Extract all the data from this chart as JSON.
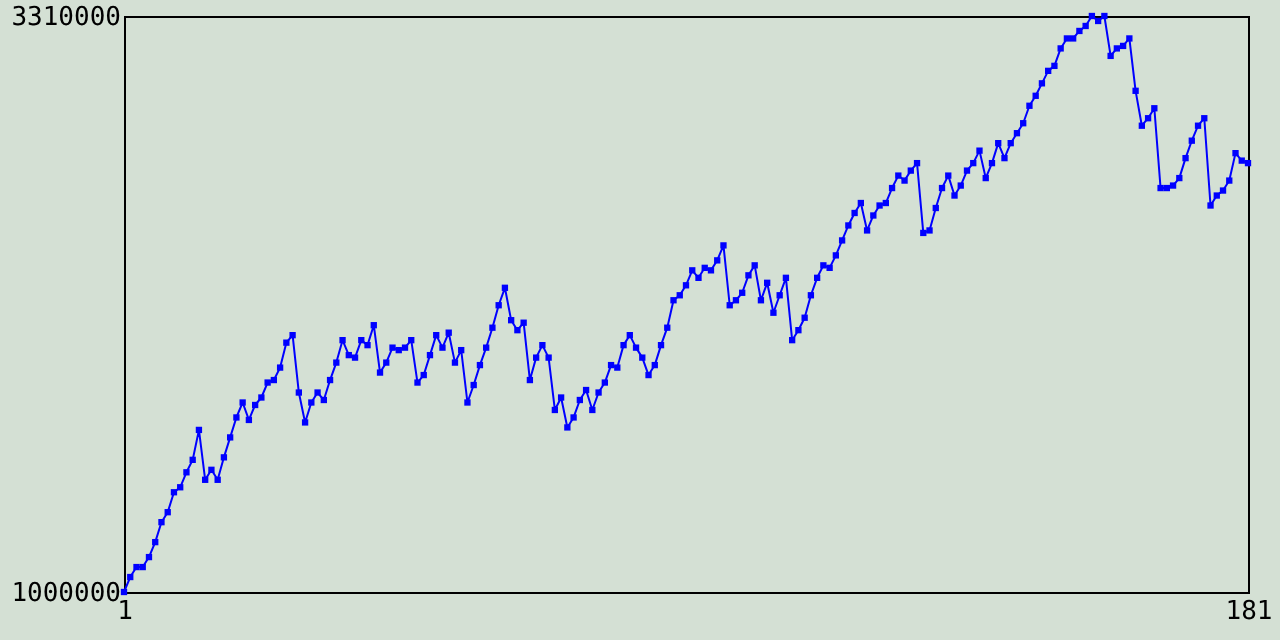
{
  "chart_data": {
    "type": "line",
    "x": [
      1,
      2,
      3,
      4,
      5,
      6,
      7,
      8,
      9,
      10,
      11,
      12,
      13,
      14,
      15,
      16,
      17,
      18,
      19,
      20,
      21,
      22,
      23,
      24,
      25,
      26,
      27,
      28,
      29,
      30,
      31,
      32,
      33,
      34,
      35,
      36,
      37,
      38,
      39,
      40,
      41,
      42,
      43,
      44,
      45,
      46,
      47,
      48,
      49,
      50,
      51,
      52,
      53,
      54,
      55,
      56,
      57,
      58,
      59,
      60,
      61,
      62,
      63,
      64,
      65,
      66,
      67,
      68,
      69,
      70,
      71,
      72,
      73,
      74,
      75,
      76,
      77,
      78,
      79,
      80,
      81,
      82,
      83,
      84,
      85,
      86,
      87,
      88,
      89,
      90,
      91,
      92,
      93,
      94,
      95,
      96,
      97,
      98,
      99,
      100,
      101,
      102,
      103,
      104,
      105,
      106,
      107,
      108,
      109,
      110,
      111,
      112,
      113,
      114,
      115,
      116,
      117,
      118,
      119,
      120,
      121,
      122,
      123,
      124,
      125,
      126,
      127,
      128,
      129,
      130,
      131,
      132,
      133,
      134,
      135,
      136,
      137,
      138,
      139,
      140,
      141,
      142,
      143,
      144,
      145,
      146,
      147,
      148,
      149,
      150,
      151,
      152,
      153,
      154,
      155,
      156,
      157,
      158,
      159,
      160,
      161,
      162,
      163,
      164,
      165,
      166,
      167,
      168,
      169,
      170,
      171,
      172,
      173,
      174,
      175,
      176,
      177,
      178,
      179,
      180,
      181
    ],
    "series": [
      {
        "color": "#0000ff",
        "values": [
          1000000,
          1060000,
          1100000,
          1100000,
          1140000,
          1200000,
          1280000,
          1320000,
          1400000,
          1420000,
          1480000,
          1530000,
          1650000,
          1450000,
          1490000,
          1450000,
          1540000,
          1620000,
          1700000,
          1760000,
          1690000,
          1750000,
          1780000,
          1840000,
          1850000,
          1900000,
          2000000,
          2030000,
          1800000,
          1680000,
          1760000,
          1800000,
          1770000,
          1850000,
          1920000,
          2010000,
          1950000,
          1940000,
          2010000,
          1990000,
          2070000,
          1880000,
          1920000,
          1980000,
          1970000,
          1980000,
          2010000,
          1840000,
          1870000,
          1950000,
          2030000,
          1980000,
          2040000,
          1920000,
          1970000,
          1760000,
          1830000,
          1910000,
          1980000,
          2060000,
          2150000,
          2220000,
          2090000,
          2050000,
          2080000,
          1850000,
          1940000,
          1990000,
          1940000,
          1730000,
          1780000,
          1660000,
          1700000,
          1770000,
          1810000,
          1730000,
          1800000,
          1840000,
          1910000,
          1900000,
          1990000,
          2030000,
          1980000,
          1940000,
          1870000,
          1910000,
          1990000,
          2060000,
          2170000,
          2190000,
          2230000,
          2290000,
          2260000,
          2300000,
          2290000,
          2330000,
          2390000,
          2150000,
          2170000,
          2200000,
          2270000,
          2310000,
          2170000,
          2240000,
          2120000,
          2190000,
          2260000,
          2010000,
          2050000,
          2100000,
          2190000,
          2260000,
          2310000,
          2300000,
          2350000,
          2410000,
          2470000,
          2520000,
          2560000,
          2450000,
          2510000,
          2550000,
          2560000,
          2620000,
          2670000,
          2650000,
          2690000,
          2720000,
          2440000,
          2450000,
          2540000,
          2620000,
          2670000,
          2590000,
          2630000,
          2690000,
          2720000,
          2770000,
          2660000,
          2720000,
          2800000,
          2740000,
          2800000,
          2840000,
          2880000,
          2950000,
          2990000,
          3040000,
          3090000,
          3110000,
          3180000,
          3220000,
          3220000,
          3250000,
          3270000,
          3310000,
          3290000,
          3310000,
          3150000,
          3180000,
          3190000,
          3220000,
          3010000,
          2870000,
          2900000,
          2940000,
          2620000,
          2620000,
          2630000,
          2660000,
          2740000,
          2810000,
          2870000,
          2900000,
          2550000,
          2590000,
          2610000,
          2650000,
          2760000,
          2730000,
          2720000
        ]
      }
    ],
    "xlim": [
      1,
      181
    ],
    "xticks": [
      1,
      181
    ],
    "ylim": [
      1000000,
      3310000
    ],
    "yticks": [
      1000000,
      3310000
    ],
    "marker": "square",
    "line_style": "solid"
  }
}
